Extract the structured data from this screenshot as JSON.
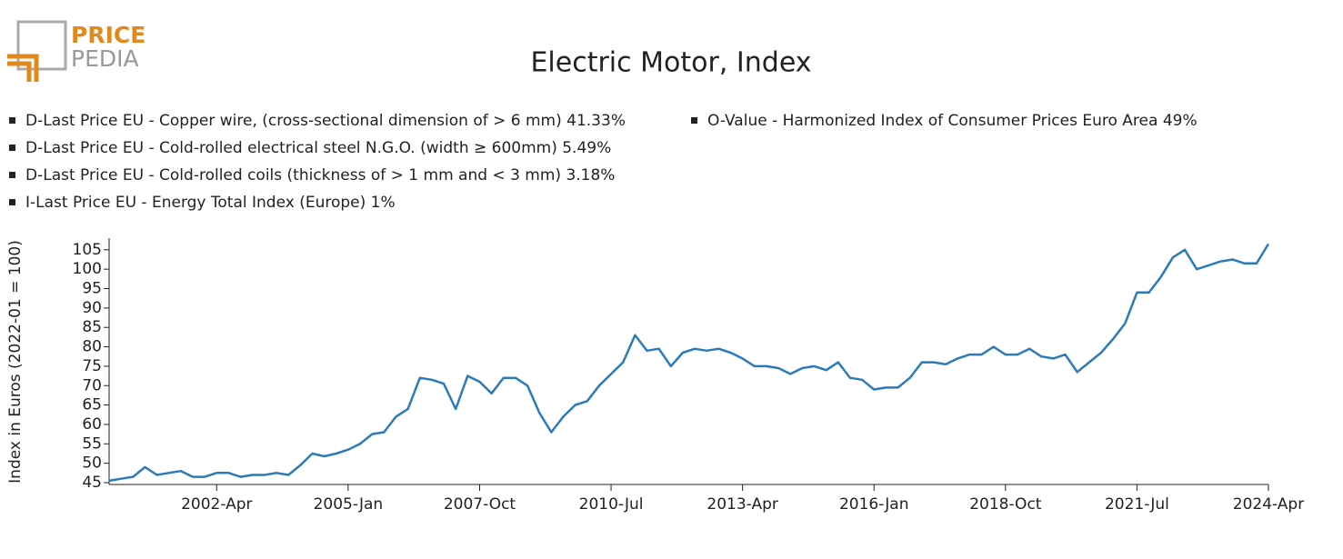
{
  "logo": {
    "line1": "PRICE",
    "line2": "PEDIA"
  },
  "chart_data": {
    "type": "line",
    "title": "Electric Motor, Index",
    "legend_notes": [
      "D-Last Price EU - Copper wire, (cross-sectional dimension of > 6 mm) 41.33%",
      "D-Last Price EU - Cold-rolled electrical steel N.G.O. (width ≥ 600mm) 5.49%",
      "D-Last Price EU - Cold-rolled coils (thickness of > 1 mm and < 3 mm) 3.18%",
      "I-Last Price EU - Energy Total Index (Europe) 1%",
      "O-Value - Harmonized Index of Consumer Prices Euro Area 49%"
    ],
    "y_label": "Index in Euros (2022-01 = 100)",
    "categories": [
      null,
      null,
      null,
      null,
      null,
      null,
      null,
      null,
      null,
      "2002-Apr",
      null,
      null,
      null,
      null,
      null,
      null,
      null,
      null,
      null,
      null,
      "2005-Jan",
      null,
      null,
      null,
      null,
      null,
      null,
      null,
      null,
      null,
      null,
      "2007-Oct",
      null,
      null,
      null,
      null,
      null,
      null,
      null,
      null,
      null,
      null,
      "2010-Jul",
      null,
      null,
      null,
      null,
      null,
      null,
      null,
      null,
      null,
      null,
      "2013-Apr",
      null,
      null,
      null,
      null,
      null,
      null,
      null,
      null,
      null,
      null,
      "2016-Jan",
      null,
      null,
      null,
      null,
      null,
      null,
      null,
      null,
      null,
      null,
      "2018-Oct",
      null,
      null,
      null,
      null,
      null,
      null,
      null,
      null,
      null,
      null,
      "2021-Jul",
      null,
      null,
      null,
      null,
      null,
      null,
      null,
      null,
      null,
      null,
      "2024-Apr"
    ],
    "values": [
      45.5,
      46,
      46.5,
      49,
      47,
      47.5,
      48,
      46.5,
      46.5,
      47.5,
      47.5,
      46.5,
      47,
      47,
      47.5,
      47,
      49.5,
      52.5,
      51.8,
      52.5,
      53.5,
      55,
      57.5,
      58,
      62,
      64,
      72,
      71.5,
      70.5,
      64,
      72.5,
      71,
      68,
      72,
      72,
      70,
      63,
      58,
      62,
      65,
      66,
      70,
      73,
      76,
      83,
      79,
      79.5,
      75,
      78.5,
      79.5,
      79,
      79.5,
      78.5,
      77,
      75,
      75,
      74.5,
      73,
      74.5,
      75,
      74,
      76,
      72,
      71.5,
      69,
      69.5,
      69.5,
      72,
      76,
      76,
      75.5,
      77,
      78,
      78,
      80,
      78,
      78,
      79.5,
      77.5,
      77,
      78,
      73.5,
      76,
      78.5,
      82,
      86,
      94,
      94,
      98,
      103,
      105,
      100,
      101,
      102,
      102.5,
      101.5,
      101.5,
      106.5
    ],
    "color": "#2b7bb9",
    "ylim": [
      45,
      108
    ],
    "yticks": [
      45,
      50,
      55,
      60,
      65,
      70,
      75,
      80,
      85,
      90,
      95,
      100,
      105
    ],
    "grid": false
  }
}
